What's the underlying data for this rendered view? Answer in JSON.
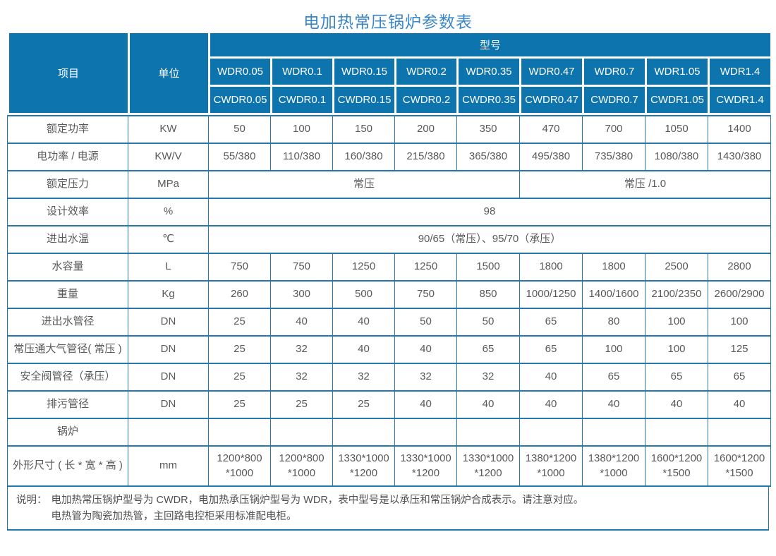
{
  "title": "电加热常压锅炉参数表",
  "colors": {
    "header_bg": "#0d74ad",
    "header_text": "#ffffff",
    "grid": "#2578ad",
    "title": "#3a87c8",
    "body_text": "#58595b",
    "note_text": "#4f5052"
  },
  "table": {
    "header": {
      "item": "项目",
      "unit": "单位",
      "model_group": "型号",
      "wdr_models": [
        "WDR0.05",
        "WDR0.1",
        "WDR0.15",
        "WDR0.2",
        "WDR0.35",
        "WDR0.47",
        "WDR0.7",
        "WDR1.05",
        "WDR1.4"
      ],
      "cwdr_models": [
        "CWDR0.05",
        "CWDR0.1",
        "CWDR0.15",
        "CWDR0.2",
        "CWDR0.35",
        "CWDR0.47",
        "CWDR0.7",
        "CWDR1.05",
        "CWDR1.4"
      ]
    },
    "rows": [
      {
        "label": "额定功率",
        "unit": "KW",
        "values": [
          "50",
          "100",
          "150",
          "200",
          "350",
          "470",
          "700",
          "1050",
          "1400"
        ]
      },
      {
        "label": "电功率 / 电源",
        "unit": "KW/V",
        "values": [
          "55/380",
          "110/380",
          "160/380",
          "215/380",
          "365/380",
          "495/380",
          "735/380",
          "1080/380",
          "1430/380"
        ]
      },
      {
        "label": "额定压力",
        "unit": "MPa",
        "spans": [
          {
            "text": "常压",
            "cols": 5
          },
          {
            "text": "常压 /1.0",
            "cols": 4
          }
        ]
      },
      {
        "label": "设计效率",
        "unit": "%",
        "spans": [
          {
            "text": "98",
            "cols": 9
          }
        ]
      },
      {
        "label": "进出水温",
        "unit": "℃",
        "spans": [
          {
            "text": "90/65（常压）、95/70（承压）",
            "cols": 9
          }
        ]
      },
      {
        "label": "水容量",
        "unit": "L",
        "values": [
          "750",
          "750",
          "1250",
          "1250",
          "1500",
          "1800",
          "1800",
          "2500",
          "2800"
        ]
      },
      {
        "label": "重量",
        "unit": "Kg",
        "values": [
          "260",
          "300",
          "500",
          "750",
          "850",
          "1000/1250",
          "1400/1600",
          "2100/2350",
          "2600/2900"
        ]
      },
      {
        "label": "进出水管径",
        "unit": "DN",
        "values": [
          "25",
          "40",
          "40",
          "50",
          "50",
          "65",
          "80",
          "100",
          "100"
        ]
      },
      {
        "label": "常压通大气管径( 常压 )",
        "unit": "DN",
        "values": [
          "25",
          "32",
          "40",
          "40",
          "65",
          "65",
          "100",
          "100",
          "125"
        ]
      },
      {
        "label": "安全阀管径（承压）",
        "unit": "DN",
        "values": [
          "25",
          "32",
          "32",
          "32",
          "32",
          "40",
          "65",
          "65",
          "65"
        ]
      },
      {
        "label": "排污管径",
        "unit": "DN",
        "values": [
          "25",
          "25",
          "25",
          "40",
          "40",
          "40",
          "40",
          "40",
          "40"
        ]
      },
      {
        "label": "锅炉",
        "unit": "",
        "values": [
          "",
          "",
          "",
          "",
          "",
          "",
          "",
          "",
          ""
        ]
      },
      {
        "label": "外形尺寸 ( 长 * 宽 * 高 )",
        "unit": "mm",
        "values": [
          "1200*800\n*1000",
          "1200*800\n*1000",
          "1330*1000\n*1200",
          "1330*1000\n*1200",
          "1330*1000\n*1200",
          "1380*1200\n*1000",
          "1380*1200\n*1000",
          "1600*1200\n*1500",
          "1600*1200\n*1500"
        ]
      }
    ],
    "note": {
      "label": "说明：",
      "lines": [
        "电加热常压锅炉型号为 CWDR，电加热承压锅炉型号为 WDR，表中型号是以承压和常压锅炉合成表示。请注意对应。",
        "电热管为陶瓷加热管，主回路电控柜采用标准配电柜。"
      ]
    }
  }
}
